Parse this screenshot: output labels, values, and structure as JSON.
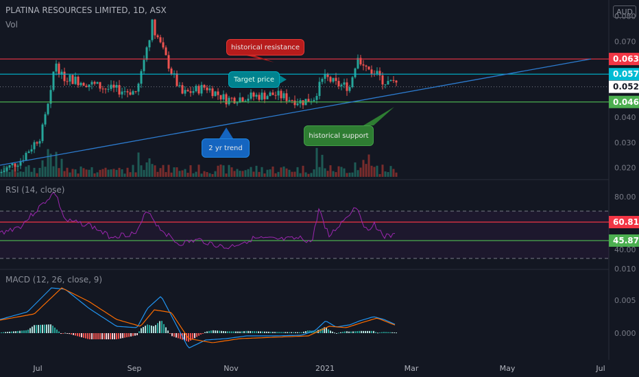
{
  "header": {
    "title": "PLATINA RESOURCES LIMITED, 1D, ASX",
    "volume_label": "Vol",
    "currency": "AUD"
  },
  "price_axis": {
    "ticks": [
      "0.080",
      "0.070",
      "0.040",
      "0.030",
      "0.020"
    ]
  },
  "price_markers": [
    {
      "label": "0.063",
      "color": "#f23645",
      "value": 0.063
    },
    {
      "label": "0.057",
      "color": "#00bcd4",
      "value": 0.057
    },
    {
      "label": "0.052",
      "color": "#ffffff",
      "value": 0.052
    },
    {
      "label": "0.046",
      "color": "#4caf50",
      "value": 0.046
    }
  ],
  "callouts": {
    "resistance": "historical resistance",
    "target": "Target price",
    "trend": "2 yr trend",
    "support": "historical support"
  },
  "rsi": {
    "label": "RSI (14, close)",
    "ticks": [
      "80.00",
      "40.00"
    ],
    "value_high": "60.81",
    "value_low": "45.87"
  },
  "macd": {
    "label": "MACD (12, 26, close, 9)",
    "ticks": [
      "0.010",
      "0.005",
      "0.000"
    ]
  },
  "time_axis": {
    "labels": [
      "Jul",
      "Sep",
      "Nov",
      "2021",
      "Mar",
      "May",
      "Jul"
    ]
  },
  "colors": {
    "up": "#26a69a",
    "down": "#ef5350",
    "bg": "#131722",
    "rsi": "#9c27b0",
    "macd": "#2196f3",
    "signal": "#ff6d00",
    "trend": "#2d7dd2"
  }
}
